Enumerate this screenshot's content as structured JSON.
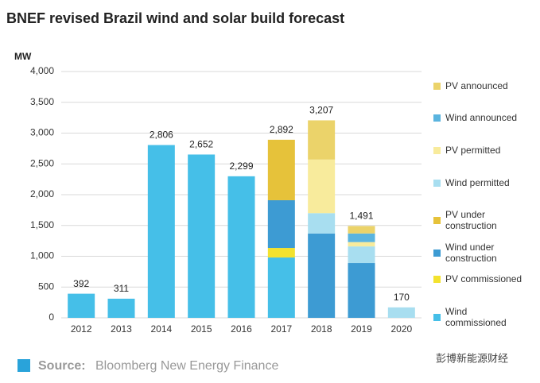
{
  "chart_data": {
    "type": "stacked_bar",
    "title": "BNEF revised Brazil wind and solar build forecast",
    "y_label": "MW",
    "categories": [
      "2012",
      "2013",
      "2014",
      "2015",
      "2016",
      "2017",
      "2018",
      "2019",
      "2020"
    ],
    "series": [
      {
        "name": "Wind commissioned",
        "color": "#45bfe8",
        "values": [
          392,
          311,
          2806,
          2652,
          2299,
          980,
          null,
          null,
          null
        ]
      },
      {
        "name": "PV commissioned",
        "color": "#f3e22e",
        "values": [
          null,
          null,
          null,
          null,
          null,
          155,
          null,
          null,
          null
        ]
      },
      {
        "name": "Wind under construction",
        "color": "#3d9bd3",
        "values": [
          null,
          null,
          null,
          null,
          null,
          775,
          1370,
          890,
          null
        ]
      },
      {
        "name": "PV under construction",
        "color": "#e6c23a",
        "values": [
          null,
          null,
          null,
          null,
          null,
          982,
          null,
          null,
          null
        ]
      },
      {
        "name": "Wind permitted",
        "color": "#a8def0",
        "values": [
          null,
          null,
          null,
          null,
          null,
          null,
          330,
          270,
          170
        ]
      },
      {
        "name": "PV permitted",
        "color": "#f8eb9c",
        "values": [
          null,
          null,
          null,
          null,
          null,
          null,
          870,
          70,
          null
        ]
      },
      {
        "name": "Wind announced",
        "color": "#5ab4df",
        "values": [
          null,
          null,
          null,
          null,
          null,
          null,
          null,
          140,
          null
        ]
      },
      {
        "name": "PV announced",
        "color": "#ebd36a",
        "values": [
          null,
          null,
          null,
          null,
          null,
          null,
          637,
          121,
          null
        ]
      }
    ],
    "totals": {
      "values": [
        392,
        311,
        2806,
        2652,
        2299,
        2892,
        3207,
        1491,
        170
      ],
      "value_labels": [
        "392",
        "311",
        "2,806",
        "2,652",
        "2,299",
        "2,892",
        "3,207",
        "1,491",
        "170"
      ]
    },
    "ylim": [
      0,
      4000
    ],
    "yticks": [
      0,
      500,
      {
        "value": 1000,
        "label": "1,000"
      },
      {
        "value": 1500,
        "label": "1,500"
      },
      {
        "value": 2000,
        "label": "2,000"
      },
      {
        "value": 2500,
        "label": "2,500"
      },
      {
        "value": 3000,
        "label": "3,000"
      },
      {
        "value": 3500,
        "label": "3,500"
      },
      {
        "value": 4000,
        "label": "4,000"
      }
    ],
    "grid": true,
    "legend": "right",
    "source_label": "Source:",
    "source": "Bloomberg New Energy Finance",
    "watermark": "彭博新能源财经"
  }
}
